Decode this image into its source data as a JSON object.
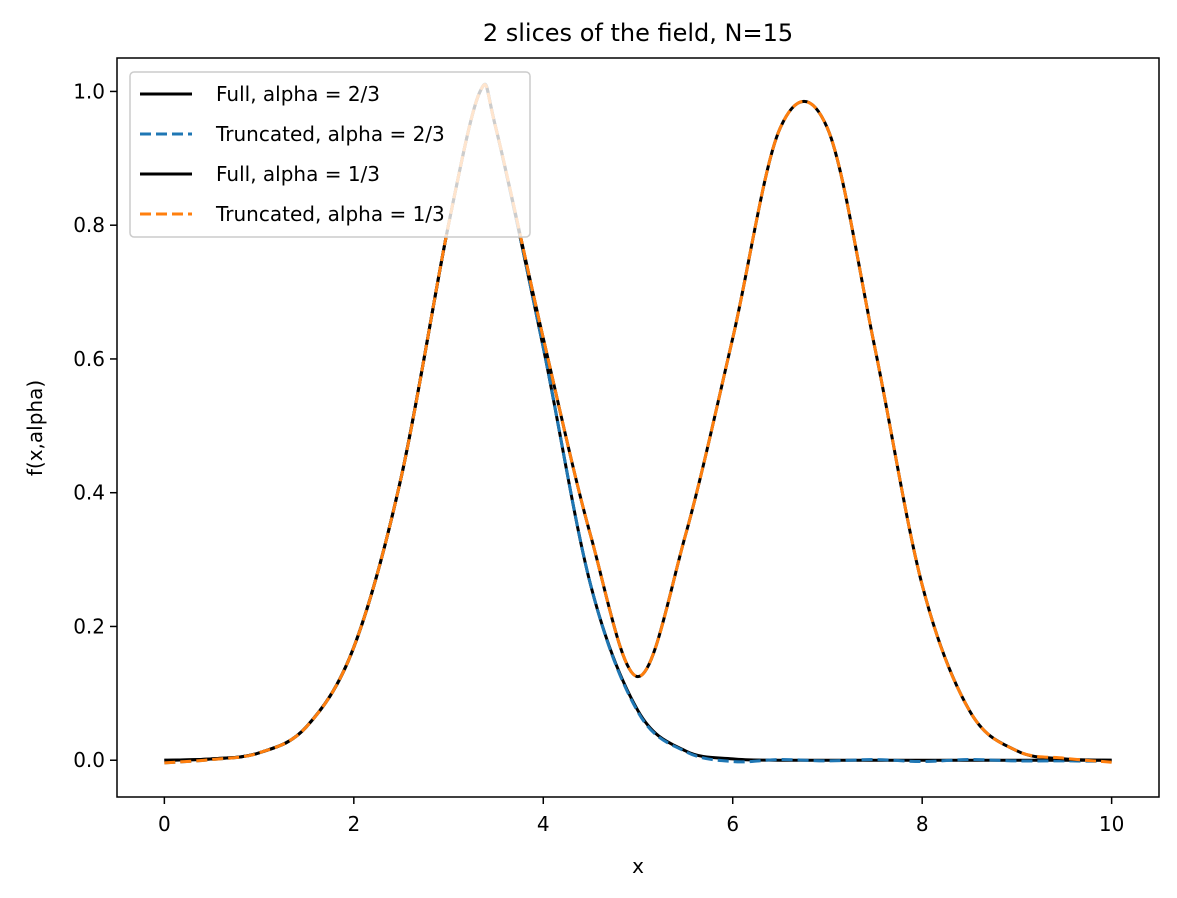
{
  "chart_data": {
    "type": "line",
    "title": "2 slices of the field, N=15",
    "xlabel": "x",
    "ylabel": "f(x,alpha)",
    "xlim": [
      -0.5,
      10.5
    ],
    "ylim": [
      -0.055,
      1.05
    ],
    "xticks": [
      0,
      2,
      4,
      6,
      8,
      10
    ],
    "xtick_labels": [
      "0",
      "2",
      "4",
      "6",
      "8",
      "10"
    ],
    "yticks": [
      0.0,
      0.2,
      0.4,
      0.6,
      0.8,
      1.0
    ],
    "ytick_labels": [
      "0.0",
      "0.2",
      "0.4",
      "0.6",
      "0.8",
      "1.0"
    ],
    "grid": false,
    "legend_position": "top-left",
    "x": [
      0,
      0.5,
      1.0,
      1.5,
      2.0,
      2.5,
      3.0,
      3.333,
      3.5,
      4.0,
      4.5,
      5.0,
      5.5,
      6.0,
      6.5,
      7.0,
      7.5,
      8.0,
      8.5,
      9.0,
      9.5,
      10.0
    ],
    "series": [
      {
        "name": "Full, alpha = 2/3",
        "color": "#000000",
        "dash": "solid",
        "values": [
          0.0,
          0.002,
          0.011,
          0.05,
          0.169,
          0.423,
          0.801,
          1.0,
          0.945,
          0.617,
          0.262,
          0.074,
          0.014,
          0.002,
          0.0,
          0.0,
          0.0,
          0.0,
          0.0,
          0.0,
          0.0,
          0.0
        ]
      },
      {
        "name": "Truncated, alpha = 2/3",
        "color": "#1f77b4",
        "dash": "dashed",
        "values": [
          -0.004,
          0.001,
          0.011,
          0.05,
          0.169,
          0.423,
          0.801,
          1.0,
          0.945,
          0.617,
          0.262,
          0.072,
          0.013,
          -0.002,
          0.001,
          -0.001,
          0.001,
          -0.002,
          0.001,
          -0.001,
          -0.001,
          -0.002
        ]
      },
      {
        "name": "Full, alpha = 1/3",
        "color": "#000000",
        "dash": "solid",
        "values": [
          0.0,
          0.002,
          0.011,
          0.05,
          0.169,
          0.423,
          0.801,
          1.0,
          0.945,
          0.631,
          0.336,
          0.125,
          0.336,
          0.631,
          0.945,
          0.945,
          0.617,
          0.262,
          0.074,
          0.014,
          0.002,
          0.0
        ]
      },
      {
        "name": "Truncated, alpha = 1/3",
        "color": "#ff7f0e",
        "dash": "dashed",
        "values": [
          -0.004,
          0.001,
          0.011,
          0.05,
          0.169,
          0.423,
          0.801,
          1.0,
          0.945,
          0.631,
          0.336,
          0.125,
          0.336,
          0.631,
          0.945,
          0.945,
          0.617,
          0.262,
          0.074,
          0.014,
          0.003,
          -0.003
        ]
      }
    ]
  }
}
